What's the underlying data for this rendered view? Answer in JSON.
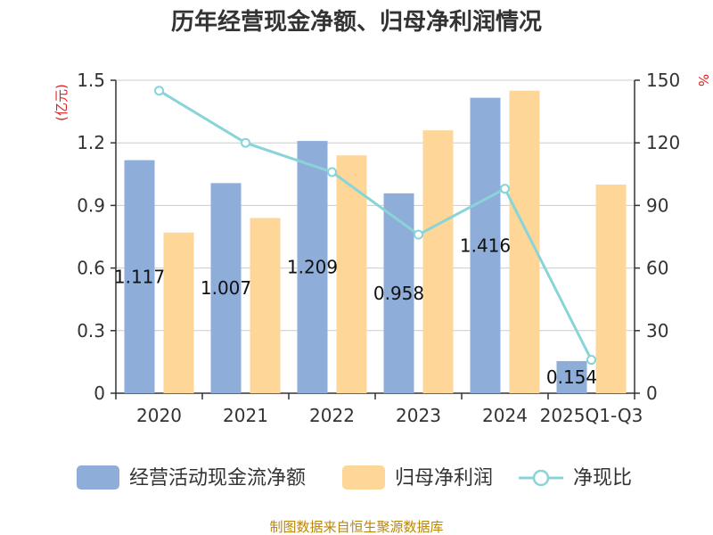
{
  "chart_data": {
    "type": "bar",
    "title": "历年经营现金净额、归母净利润情况",
    "categories": [
      "2020",
      "2021",
      "2022",
      "2023",
      "2024",
      "2025Q1-Q3"
    ],
    "left_unit": "(亿元)",
    "right_unit": "%",
    "left_axis": {
      "min": 0,
      "max": 1.5,
      "ticks": [
        "0",
        "0.3",
        "0.6",
        "0.9",
        "1.2",
        "1.5"
      ]
    },
    "right_axis": {
      "min": 0,
      "max": 150,
      "ticks": [
        "0",
        "30",
        "60",
        "90",
        "120",
        "150"
      ]
    },
    "grid": true,
    "legend_position": "bottom",
    "series": [
      {
        "name": "经营活动现金流净额",
        "kind": "bar",
        "axis": "left",
        "color": "#8eadd9",
        "values": [
          1.117,
          1.007,
          1.209,
          0.958,
          1.416,
          0.154
        ],
        "labels": [
          "1.117",
          "1.007",
          "1.209",
          "0.958",
          "1.416",
          "0.154"
        ]
      },
      {
        "name": "归母净利润",
        "kind": "bar",
        "axis": "left",
        "color": "#fdd698",
        "values": [
          0.77,
          0.84,
          1.14,
          1.26,
          1.45,
          1.0
        ]
      },
      {
        "name": "净现比",
        "kind": "line",
        "axis": "right",
        "color": "#88d4d8",
        "values": [
          145,
          120,
          106,
          76,
          98,
          16
        ]
      }
    ]
  },
  "source_text": "制图数据来自恒生聚源数据库"
}
